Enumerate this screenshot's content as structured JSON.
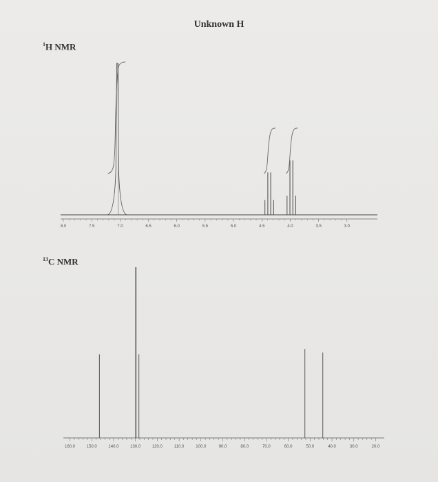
{
  "title": "Unknown H",
  "h_nmr": {
    "superscript": "1",
    "label": "H NMR"
  },
  "c_nmr": {
    "superscript": "13",
    "label": "C NMR"
  },
  "chart_data": [
    {
      "type": "line",
      "name": "1H NMR",
      "x_axis": {
        "range": [
          8.0,
          2.5
        ],
        "reversed": true,
        "tick_labels": [
          "8.0",
          "7.5",
          "7.0",
          "6.5",
          "6.0",
          "5.5",
          "5.0",
          "4.5",
          "4.0",
          "3.5",
          "3.0"
        ]
      },
      "peaks": [
        {
          "shift": 7.05,
          "height": 1.0,
          "width": 0.025,
          "multiplicity": "singlet"
        },
        {
          "shift": 4.37,
          "height": 0.28,
          "multiplicity": "quartet"
        },
        {
          "shift": 3.98,
          "height": 0.36,
          "multiplicity": "quartet"
        }
      ],
      "integrals": [
        {
          "shift": 7.05
        },
        {
          "shift": 4.37
        },
        {
          "shift": 3.98
        }
      ]
    },
    {
      "type": "bar",
      "name": "13C NMR",
      "x_axis": {
        "range": [
          163,
          17
        ],
        "reversed": true,
        "tick_labels": [
          "160.0",
          "150.0",
          "140.0",
          "130.0",
          "120.0",
          "110.0",
          "100.0",
          "90.0",
          "80.0",
          "70.0",
          "60.0",
          "50.0",
          "40.0",
          "30.0",
          "20.0"
        ]
      },
      "peaks": [
        {
          "shift": 146.5,
          "height": 0.49
        },
        {
          "shift": 129.8,
          "height": 1.0
        },
        {
          "shift": 128.4,
          "height": 0.49
        },
        {
          "shift": 52.4,
          "height": 0.52
        },
        {
          "shift": 44.2,
          "height": 0.5
        }
      ]
    }
  ]
}
